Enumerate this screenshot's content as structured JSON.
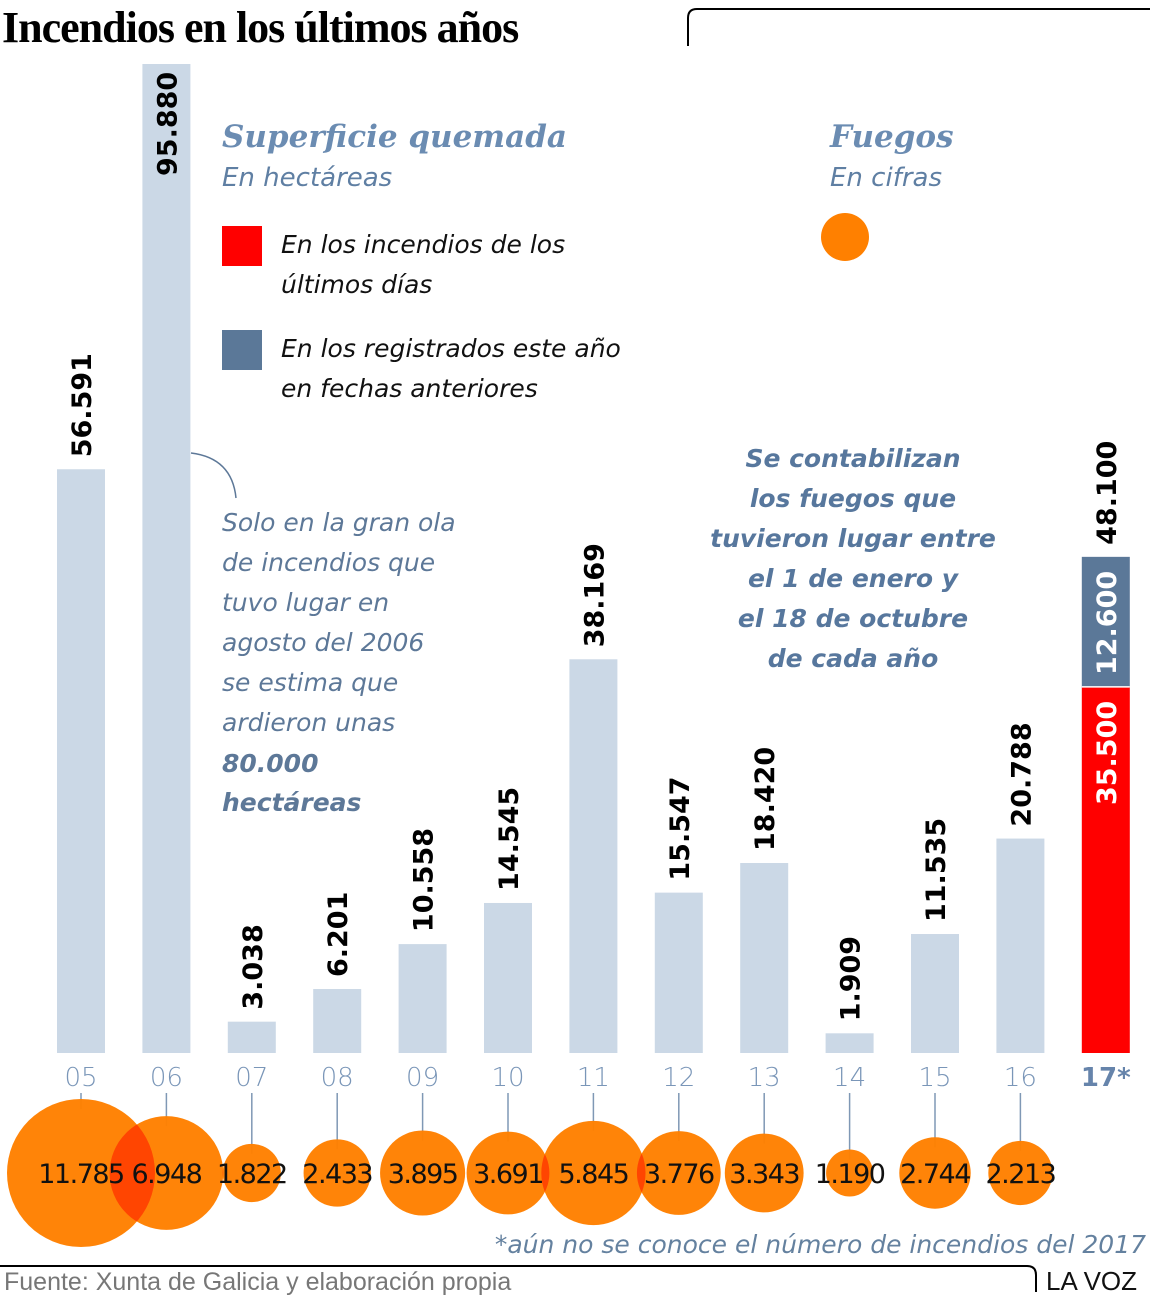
{
  "chart_data": {
    "type": "bar",
    "title": "Incendios en los últimos años",
    "categories": [
      "05",
      "06",
      "07",
      "08",
      "09",
      "10",
      "11",
      "12",
      "13",
      "14",
      "15",
      "16",
      "17*"
    ],
    "bars": {
      "title": "Superficie quemada",
      "subtitle": "En hectáreas",
      "values": [
        56591,
        95880,
        3038,
        6201,
        10558,
        14545,
        38169,
        15547,
        18420,
        1909,
        11535,
        20788,
        48100
      ],
      "labels": [
        "56.591",
        "95.880",
        "3.038",
        "6.201",
        "10.558",
        "14.545",
        "38.169",
        "15.547",
        "18.420",
        "1.909",
        "11.535",
        "20.788",
        "48.100"
      ],
      "stacked_last": {
        "category": "17*",
        "series": [
          {
            "name": "En los incendios de los últimos días",
            "value": 35500,
            "label": "35.500",
            "color": "#ff0000"
          },
          {
            "name": "En los registrados este año en fechas anteriores",
            "value": 12600,
            "label": "12.600",
            "color": "#5b7898"
          }
        ]
      },
      "color": "#cbd8e6",
      "ylim": [
        0,
        95880
      ]
    },
    "bubbles": {
      "title": "Fuegos",
      "subtitle": "En cifras",
      "values": [
        11785,
        6948,
        1822,
        2433,
        3895,
        3691,
        5845,
        3776,
        3343,
        1190,
        2744,
        2213
      ],
      "labels": [
        "11.785",
        "6.948",
        "1.822",
        "2.433",
        "3.895",
        "3.691",
        "5.845",
        "3.776",
        "3.343",
        "1.190",
        "2.744",
        "2.213"
      ],
      "color": "#ff8000"
    },
    "legend": [
      {
        "label_lines": [
          "En los incendios de los",
          "últimos días"
        ],
        "color": "#ff0000"
      },
      {
        "label_lines": [
          "En los registrados este año",
          "en fechas anteriores"
        ],
        "color": "#5b7898"
      }
    ],
    "annotation_2006": [
      "Solo en la gran ola",
      "de incendios que",
      "tuvo lugar en",
      "agosto del 2006",
      "se estima que",
      "ardieron unas",
      "80.000",
      "hectáreas"
    ],
    "annotation_period": [
      "Se contabilizan",
      "los fuegos que",
      "tuvieron lugar entre",
      "el 1 de enero y",
      "el 18 de octubre",
      "de cada año"
    ],
    "footnote": "*aún no se conoce el número de incendios del 2017"
  },
  "footer": {
    "source": "Fuente: Xunta de Galicia y elaboración propia",
    "brand": "LA VOZ"
  }
}
